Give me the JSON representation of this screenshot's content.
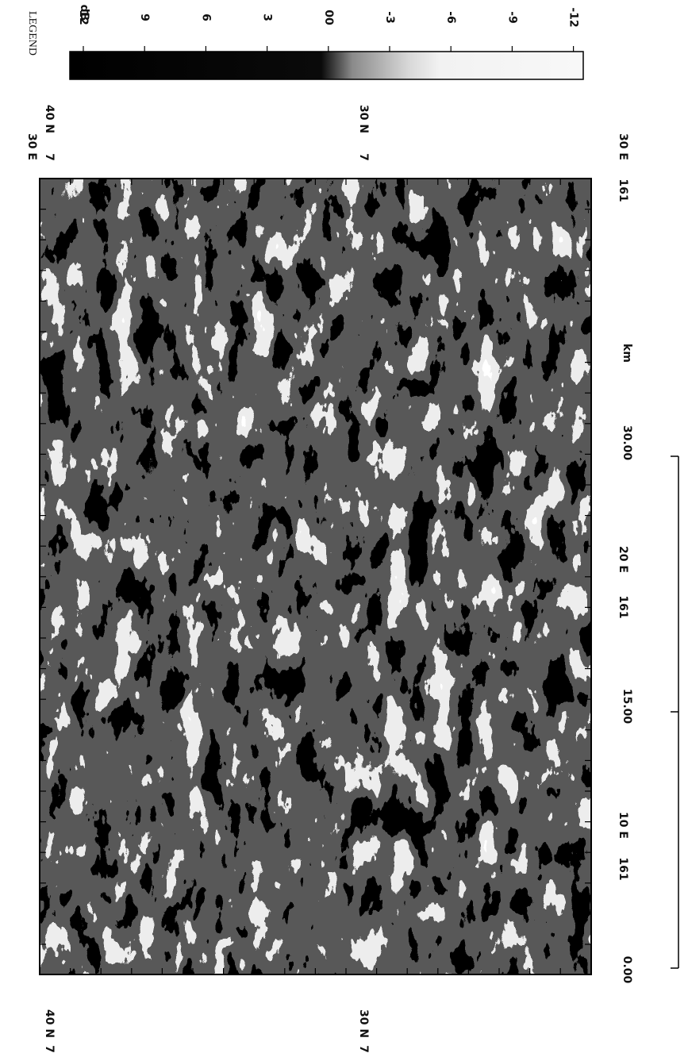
{
  "legend": {
    "title": "LEGEND",
    "unit": "dB",
    "ticks": [
      "12",
      "9",
      "6",
      "3",
      "00",
      "-3",
      "-6",
      "-9",
      "-12"
    ]
  },
  "map": {
    "labels": [
      "40 N",
      "30 E",
      "7",
      "30 N",
      "7",
      "30 E",
      "161",
      "20 E",
      "161",
      "10 E",
      "161",
      "40 N",
      "7",
      "30 N",
      "7"
    ]
  },
  "scale_bar": {
    "labels": [
      "0.00",
      "15.00",
      "30.00"
    ],
    "unit": "km"
  }
}
